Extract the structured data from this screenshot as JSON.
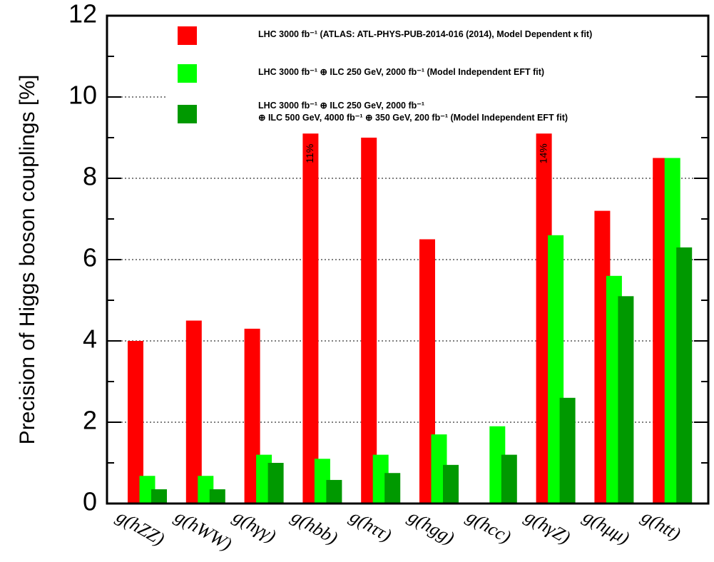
{
  "chart_data": {
    "type": "bar",
    "ylabel": "Precision of Higgs boson couplings [%]",
    "categories": [
      "g(hZZ)",
      "g(hWW)",
      "g(hγγ)",
      "g(hbb)",
      "g(hττ)",
      "g(hgg)",
      "g(hcc)",
      "g(hγZ)",
      "g(hμμ)",
      "g(htt)"
    ],
    "series": [
      {
        "name": "LHC 3000 fb⁻¹ (ATLAS: ATL-PHYS-PUB-2014-016 (2014), Model Dependent κ fit)",
        "color": "#ff0000",
        "values": [
          4.0,
          4.5,
          4.3,
          11,
          9.0,
          6.5,
          null,
          14,
          7.2,
          8.5
        ],
        "value_labels": [
          null,
          null,
          null,
          "11%",
          null,
          null,
          null,
          "14%",
          null,
          null
        ]
      },
      {
        "name": "LHC 3000 fb⁻¹ ⊕ ILC 250 GeV, 2000 fb⁻¹ (Model Independent EFT fit)",
        "color": "#00ff00",
        "values": [
          0.68,
          0.68,
          1.2,
          1.1,
          1.2,
          1.7,
          1.9,
          6.6,
          5.6,
          8.5
        ]
      },
      {
        "name": "LHC 3000 fb⁻¹ ⊕ ILC 250 GeV, 2000 fb⁻¹\n⊕ ILC 500 GeV, 4000 fb⁻¹ ⊕ 350 GeV, 200 fb⁻¹ (Model Independent EFT fit)",
        "color": "#009900",
        "values": [
          0.35,
          0.35,
          1.0,
          0.58,
          0.75,
          0.95,
          1.2,
          2.6,
          5.1,
          6.3
        ]
      }
    ],
    "bar_truncate_at": 9.1,
    "ylim": [
      0,
      12
    ],
    "yticks": [
      0,
      2,
      4,
      6,
      8,
      10,
      12
    ],
    "grid": true
  }
}
